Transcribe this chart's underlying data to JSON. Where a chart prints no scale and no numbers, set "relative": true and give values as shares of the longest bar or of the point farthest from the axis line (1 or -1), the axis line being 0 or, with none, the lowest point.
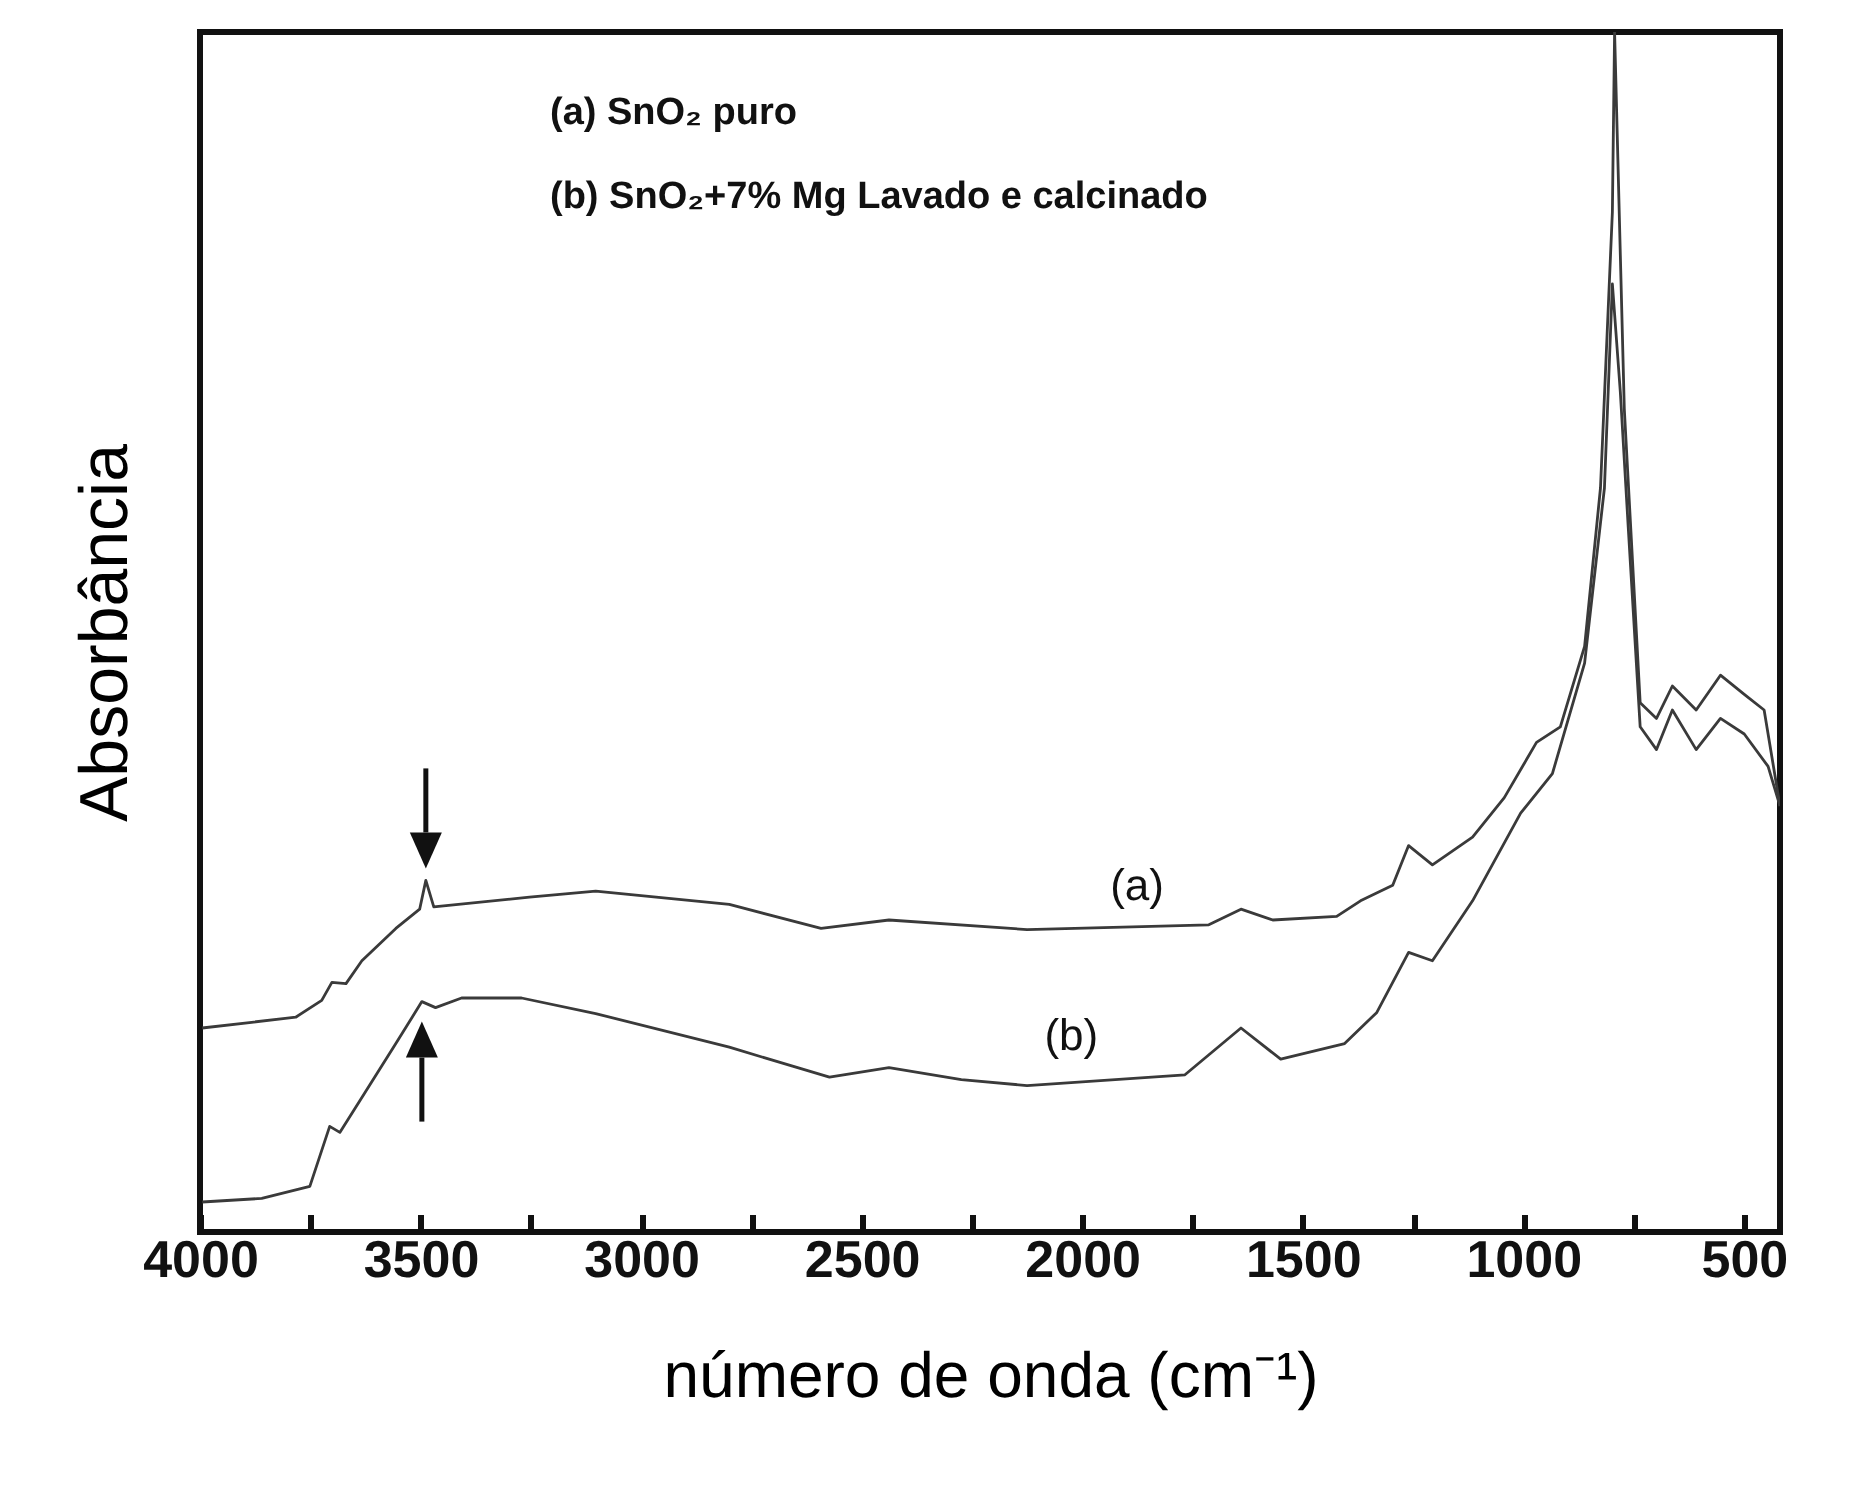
{
  "chart_data": {
    "type": "line",
    "relative": true,
    "xlabel": "número de onda (cm⁻¹)",
    "ylabel": "Absorbância",
    "xlim": [
      4000,
      418
    ],
    "xticks": [
      4000,
      {
        "value": 3750,
        "label": null
      },
      3500,
      {
        "value": 3250,
        "label": null
      },
      3000,
      {
        "value": 2750,
        "label": null
      },
      2500,
      {
        "value": 2250,
        "label": null
      },
      2000,
      {
        "value": 1750,
        "label": null
      },
      1500,
      {
        "value": 1250,
        "label": null
      },
      1000,
      {
        "value": 750,
        "label": null
      },
      500
    ],
    "grid": false,
    "annotations": [
      "(a)  SnO₂ puro",
      "(b)  SnO₂+7% Mg Lavado e calcinado"
    ],
    "series": [
      {
        "name": "(a)",
        "color": "#3a3a3a",
        "x": [
          3995,
          3783,
          3724,
          3701,
          3669,
          3633,
          3556,
          3502,
          3488,
          3470,
          3253,
          3103,
          2800,
          2592,
          2438,
          2125,
          1713,
          1640,
          1568,
          1423,
          1369,
          1296,
          1260,
          1206,
          1115,
          1043,
          970,
          916,
          861,
          825,
          798,
          793,
          771,
          735,
          698,
          662,
          608,
          553,
          499,
          454,
          418
        ],
        "values": [
          0.17,
          0.179,
          0.193,
          0.208,
          0.207,
          0.226,
          0.253,
          0.269,
          0.293,
          0.271,
          0.279,
          0.284,
          0.273,
          0.253,
          0.26,
          0.252,
          0.256,
          0.269,
          0.26,
          0.263,
          0.276,
          0.289,
          0.322,
          0.306,
          0.329,
          0.362,
          0.408,
          0.421,
          0.488,
          0.62,
          0.85,
          1.0,
          0.686,
          0.441,
          0.428,
          0.455,
          0.435,
          0.464,
          0.448,
          0.435,
          0.355
        ]
      },
      {
        "name": "(b)",
        "color": "#3a3a3a",
        "x": [
          3995,
          3860,
          3751,
          3706,
          3683,
          3633,
          3556,
          3497,
          3466,
          3407,
          3271,
          3103,
          2800,
          2573,
          2438,
          2274,
          2125,
          1767,
          1640,
          1550,
          1405,
          1332,
          1260,
          1206,
          1115,
          1006,
          934,
          861,
          816,
          798,
          780,
          762,
          735,
          698,
          662,
          608,
          553,
          499,
          445,
          418
        ],
        "values": [
          0.025,
          0.028,
          0.038,
          0.088,
          0.083,
          0.112,
          0.157,
          0.192,
          0.187,
          0.195,
          0.195,
          0.182,
          0.154,
          0.129,
          0.137,
          0.127,
          0.122,
          0.131,
          0.17,
          0.144,
          0.157,
          0.183,
          0.233,
          0.226,
          0.276,
          0.349,
          0.382,
          0.474,
          0.62,
          0.79,
          0.7,
          0.587,
          0.421,
          0.402,
          0.435,
          0.402,
          0.428,
          0.415,
          0.388,
          0.355
        ]
      }
    ]
  }
}
